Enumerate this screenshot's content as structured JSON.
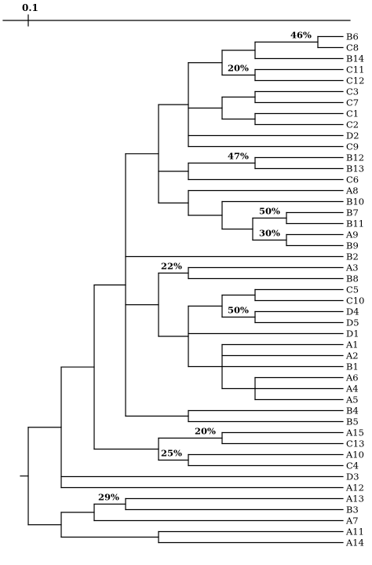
{
  "scale_bar": {
    "label": "0.1"
  },
  "leaves": [
    "B6",
    "C8",
    "B14",
    "C11",
    "C12",
    "C3",
    "C7",
    "C1",
    "C2",
    "D2",
    "C9",
    "B12",
    "B13",
    "C6",
    "A8",
    "B10",
    "B7",
    "B11",
    "A9",
    "B9",
    "B2",
    "A3",
    "B8",
    "C5",
    "C10",
    "D4",
    "D5",
    "D1",
    "A1",
    "A2",
    "B1",
    "A6",
    "A4",
    "A5",
    "B4",
    "B5",
    "A15",
    "C13",
    "A10",
    "C4",
    "D3",
    "A12",
    "A13",
    "B3",
    "A7",
    "A11",
    "A14"
  ],
  "bootstrap_labels": {
    "n46": "46%",
    "n20a": "20%",
    "n47": "47%",
    "n50a": "50%",
    "n30": "30%",
    "n22": "22%",
    "n50b": "50%",
    "n20b": "20%",
    "n25": "25%",
    "n29": "29%"
  }
}
